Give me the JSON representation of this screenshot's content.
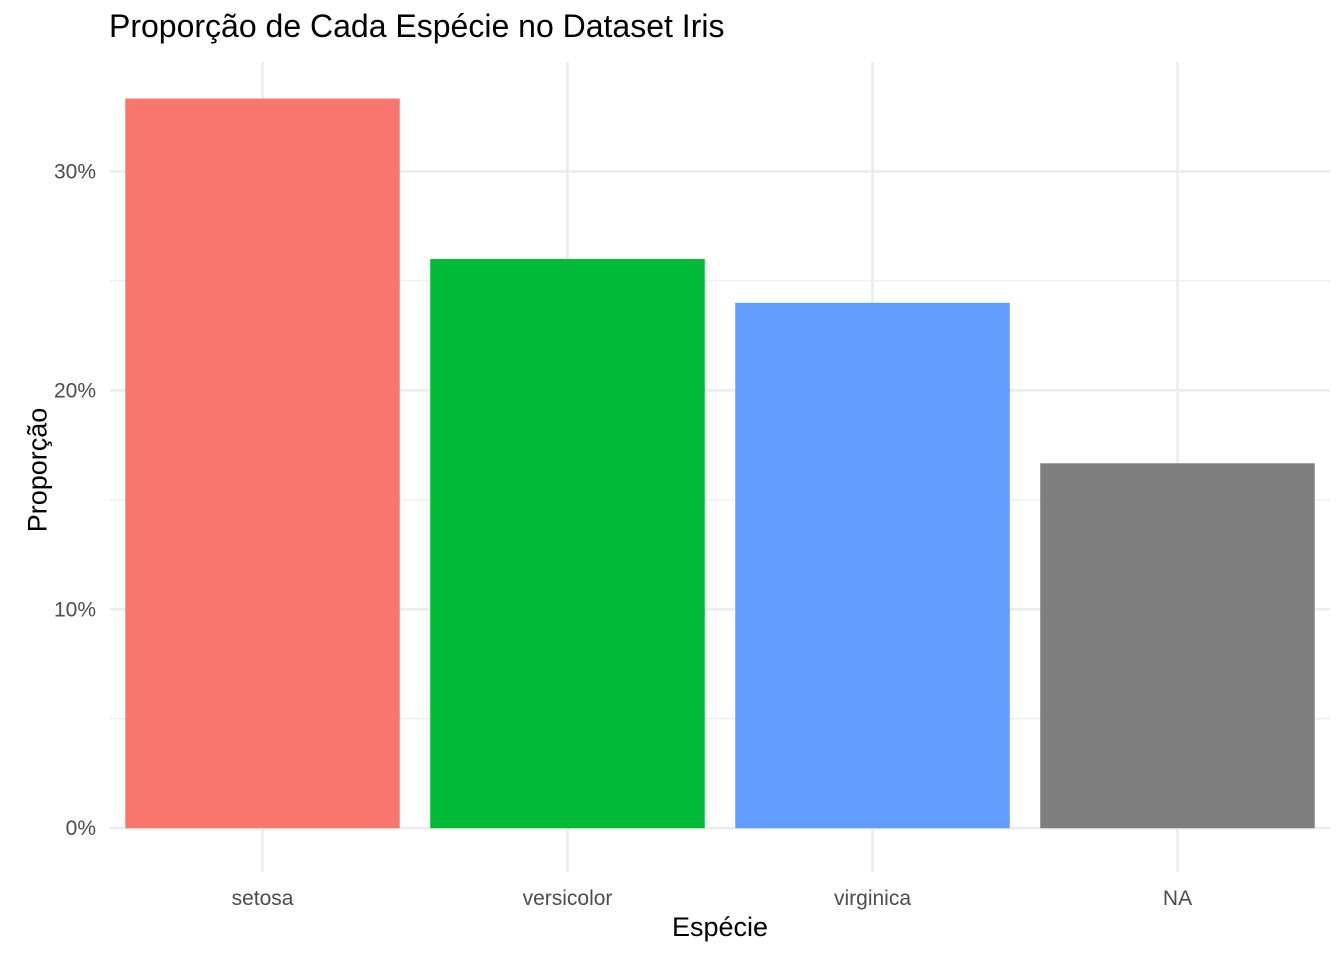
{
  "chart_data": {
    "type": "bar",
    "title": "Proporção de Cada Espécie no Dataset Iris",
    "xlabel": "Espécie",
    "ylabel": "Proporção",
    "categories": [
      "setosa",
      "versicolor",
      "virginica",
      "NA"
    ],
    "values": [
      0.3333,
      0.26,
      0.24,
      0.1667
    ],
    "colors": [
      "#F8766D",
      "#00BA38",
      "#619CFF",
      "#7F7F7F"
    ],
    "ylim": [
      -0.02,
      0.35
    ],
    "yticks": [
      0,
      0.1,
      0.2,
      0.3
    ],
    "ytick_labels": [
      "0%",
      "10%",
      "20%",
      "30%"
    ],
    "grid": true,
    "legend": "none"
  }
}
